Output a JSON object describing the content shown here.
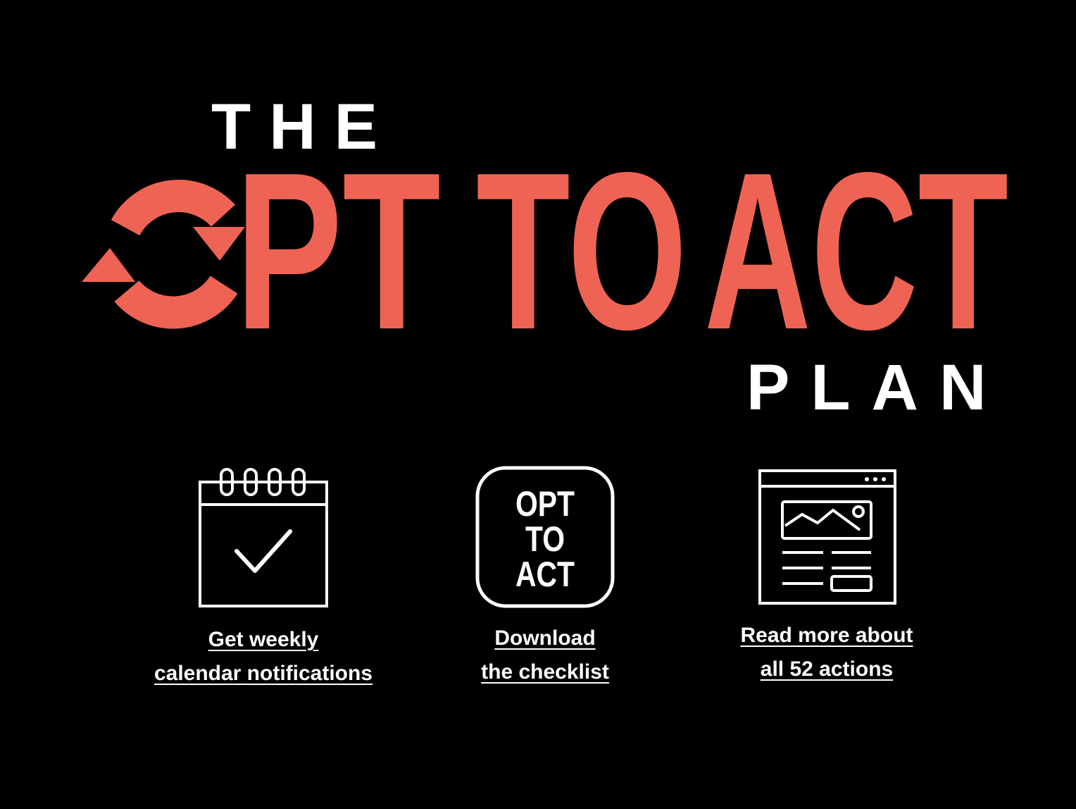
{
  "logo": {
    "top_word": "THE",
    "main_words": [
      "PT",
      "TO",
      "ACT"
    ],
    "bottom_word": "PLAN",
    "accent_color": "#EF6354",
    "text_color": "#FFFFFF",
    "background": "#000000"
  },
  "actions": [
    {
      "icon": "calendar-check-icon",
      "link_line_1": "Get weekly",
      "link_line_2": "calendar notifications"
    },
    {
      "icon": "opt-to-act-badge-icon",
      "badge_lines": [
        "OPT",
        "TO",
        "ACT"
      ],
      "link_line_1": "Download",
      "link_line_2": "the checklist"
    },
    {
      "icon": "webpage-article-icon",
      "link_line_1": "Read more about",
      "link_line_2": "all 52 actions"
    }
  ]
}
